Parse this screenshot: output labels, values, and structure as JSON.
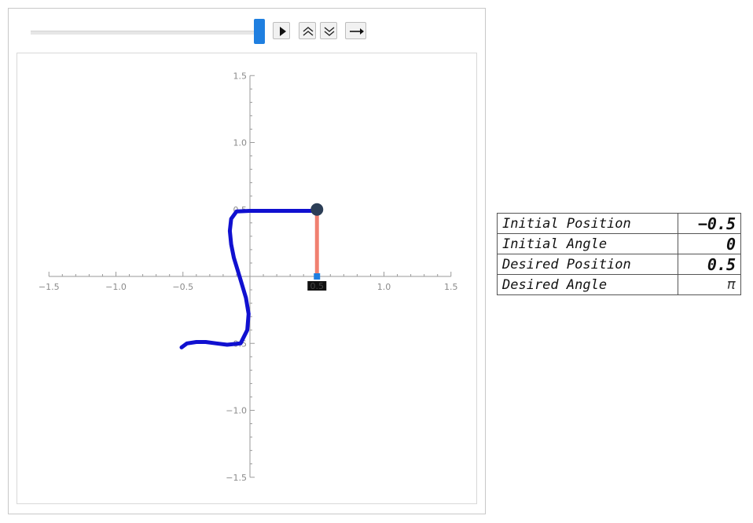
{
  "controls": {
    "slider_value": 1.0,
    "play_icon": "play-icon",
    "faster_icon": "double-chevron-up-icon",
    "slower_icon": "double-chevron-down-icon",
    "direction_icon": "right-arrow-icon"
  },
  "plot": {
    "x_ticks": [
      "−1.5",
      "−1.0",
      "−0.5",
      "1.0",
      "1.5"
    ],
    "y_ticks": [
      "1.5",
      "1.0",
      "0.5",
      "−0.5",
      "−1.0",
      "−1.5"
    ],
    "xlim": [
      -1.5,
      1.5
    ],
    "ylim": [
      -1.5,
      1.5
    ],
    "cart_label": "0.5",
    "cart_x": 0.5,
    "pendulum_tip": [
      0.5,
      0.5
    ],
    "trajectory_color": "#1010d0",
    "pendulum_color": "#f08070",
    "bob_color": "#2c3e56",
    "cart_color": "#1f7fe0",
    "trajectory": [
      [
        -0.51,
        -0.53
      ],
      [
        -0.47,
        -0.5
      ],
      [
        -0.4,
        -0.49
      ],
      [
        -0.33,
        -0.49
      ],
      [
        -0.25,
        -0.5
      ],
      [
        -0.17,
        -0.51
      ],
      [
        -0.07,
        -0.5
      ],
      [
        -0.02,
        -0.4
      ],
      [
        -0.01,
        -0.28
      ],
      [
        -0.03,
        -0.16
      ],
      [
        -0.06,
        -0.06
      ],
      [
        -0.09,
        0.04
      ],
      [
        -0.12,
        0.14
      ],
      [
        -0.14,
        0.24
      ],
      [
        -0.15,
        0.34
      ],
      [
        -0.14,
        0.43
      ],
      [
        -0.1,
        0.485
      ],
      [
        0.0,
        0.49
      ],
      [
        0.15,
        0.49
      ],
      [
        0.3,
        0.49
      ],
      [
        0.45,
        0.49
      ],
      [
        0.5,
        0.49
      ]
    ]
  },
  "params": {
    "rows": [
      {
        "name": "Initial Position",
        "value": "−0.5"
      },
      {
        "name": "Initial Angle",
        "value": "0"
      },
      {
        "name": "Desired Position",
        "value": "0.5"
      },
      {
        "name": "Desired Angle",
        "value": "π"
      }
    ]
  }
}
